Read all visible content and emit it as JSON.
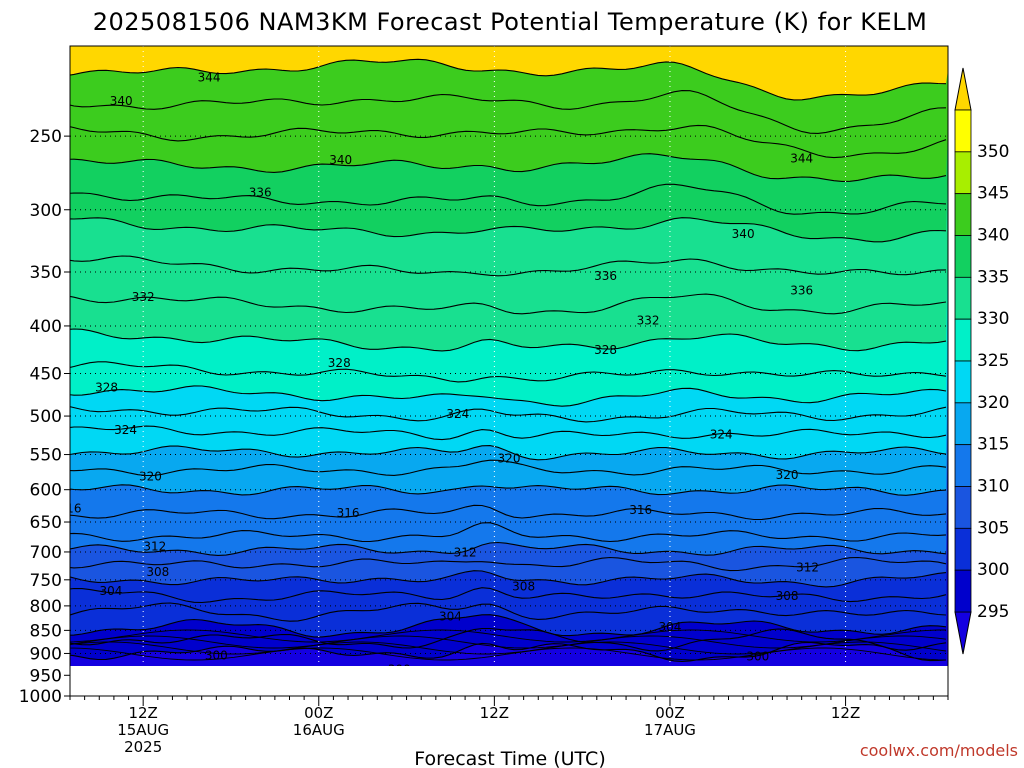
{
  "chart_data": {
    "type": "heatmap",
    "title": "2025081506 NAM3KM Forecast Potential Temperature (K) for KELM",
    "xlabel": "Forecast Time (UTC)",
    "ylabel": "",
    "credit": "coolwx.com/models",
    "x_unit": "forecast hour",
    "x_range": [
      1,
      61
    ],
    "y_unit": "hPa",
    "y_range_top_bottom": [
      200,
      1000
    ],
    "y_scale": "log-pressure",
    "yticks": [
      250,
      300,
      350,
      400,
      450,
      500,
      550,
      600,
      650,
      700,
      750,
      800,
      850,
      900,
      950,
      1000
    ],
    "xticks": [
      {
        "hour": 6,
        "lines": [
          "12Z",
          "15AUG",
          "2025"
        ]
      },
      {
        "hour": 18,
        "lines": [
          "00Z",
          "16AUG"
        ]
      },
      {
        "hour": 30,
        "lines": [
          "12Z"
        ]
      },
      {
        "hour": 42,
        "lines": [
          "00Z",
          "17AUG"
        ]
      },
      {
        "hour": 54,
        "lines": [
          "12Z"
        ]
      }
    ],
    "grid": true,
    "colorbar": {
      "levels": [
        295,
        300,
        305,
        310,
        315,
        320,
        325,
        330,
        335,
        340,
        345,
        350
      ],
      "colors": [
        "#0000cc",
        "#0a2fd8",
        "#1a55e0",
        "#1478ec",
        "#08a8f0",
        "#00d8f4",
        "#00f0c8",
        "#18e090",
        "#12d060",
        "#3ccc1e",
        "#a8ee00",
        "#ffff00"
      ],
      "under_color": "#1400e0",
      "over_color": "#ffd700"
    },
    "contour_lines": [
      {
        "value": 300,
        "labels": [
          {
            "x": 11,
            "p": 904
          },
          {
            "x": 23.5,
            "p": 935
          },
          {
            "x": 48,
            "p": 906
          }
        ]
      },
      {
        "value": 304,
        "labels": [
          {
            "x": 3.8,
            "p": 770
          },
          {
            "x": 27,
            "p": 820
          },
          {
            "x": 42,
            "p": 842
          }
        ]
      },
      {
        "value": 308,
        "labels": [
          {
            "x": 7,
            "p": 735
          },
          {
            "x": 32,
            "p": 762
          },
          {
            "x": 50,
            "p": 780
          }
        ]
      },
      {
        "value": 312,
        "labels": [
          {
            "x": 6.8,
            "p": 690
          },
          {
            "x": 28,
            "p": 700
          },
          {
            "x": 51.4,
            "p": 727
          }
        ]
      },
      {
        "value": 316,
        "labels": [
          {
            "x": 1,
            "p": 628
          },
          {
            "x": 20,
            "p": 635
          },
          {
            "x": 40,
            "p": 630
          }
        ]
      },
      {
        "value": 320,
        "labels": [
          {
            "x": 6.5,
            "p": 580
          },
          {
            "x": 31,
            "p": 555
          },
          {
            "x": 50,
            "p": 578
          }
        ]
      },
      {
        "value": 324,
        "labels": [
          {
            "x": 4.8,
            "p": 517
          },
          {
            "x": 27.5,
            "p": 497
          },
          {
            "x": 45.5,
            "p": 523
          }
        ]
      },
      {
        "value": 328,
        "labels": [
          {
            "x": 3.5,
            "p": 465
          },
          {
            "x": 19.4,
            "p": 438
          },
          {
            "x": 37.6,
            "p": 424
          }
        ]
      },
      {
        "value": 332,
        "labels": [
          {
            "x": 6,
            "p": 372
          },
          {
            "x": 40.5,
            "p": 394
          }
        ]
      },
      {
        "value": 336,
        "labels": [
          {
            "x": 14,
            "p": 287
          },
          {
            "x": 37.6,
            "p": 353
          },
          {
            "x": 51,
            "p": 366
          }
        ]
      },
      {
        "value": 340,
        "labels": [
          {
            "x": 4.5,
            "p": 229
          },
          {
            "x": 19.5,
            "p": 265
          },
          {
            "x": 47,
            "p": 318
          }
        ]
      },
      {
        "value": 344,
        "labels": [
          {
            "x": 10.5,
            "p": 216
          },
          {
            "x": 51,
            "p": 264
          }
        ]
      }
    ]
  }
}
